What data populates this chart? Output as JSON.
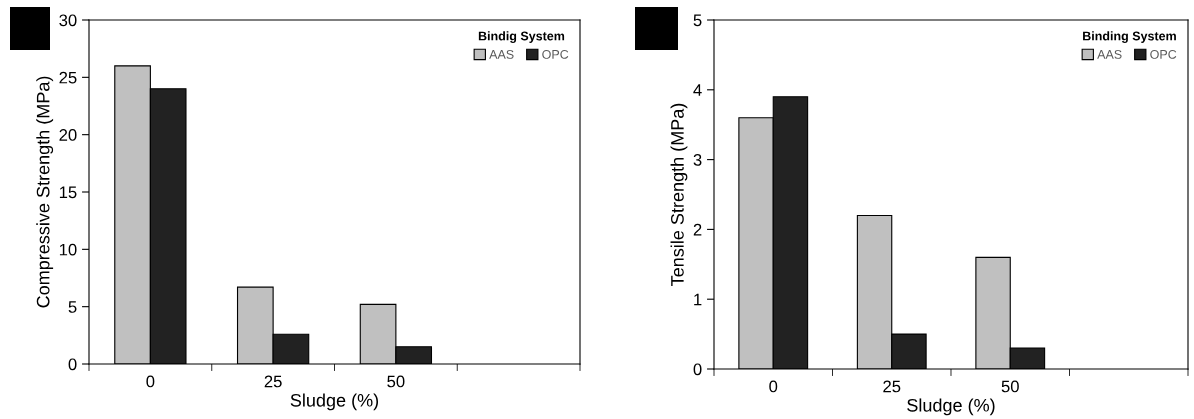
{
  "chart_data": [
    {
      "type": "bar",
      "xlabel": "Sludge (%)",
      "ylabel": "Compressive Strength (MPa)",
      "legend_title": "Bindig System",
      "legend": "top right",
      "categories": [
        "0",
        "25",
        "50",
        null
      ],
      "series": [
        {
          "name": "AAS",
          "color": "#c0c0c0",
          "values": [
            26,
            6.7,
            5.2,
            null
          ]
        },
        {
          "name": "OPC",
          "color": "#222222",
          "values": [
            24,
            2.6,
            1.5,
            null
          ]
        }
      ],
      "ylim": [
        0,
        30
      ],
      "yticks": [
        0,
        5,
        10,
        15,
        20,
        25,
        30
      ],
      "grid": false
    },
    {
      "type": "bar",
      "xlabel": "Sludge (%)",
      "ylabel": "Tensile Strength (MPa)",
      "legend_title": "Binding System",
      "legend": "top right",
      "categories": [
        "0",
        "25",
        "50",
        null
      ],
      "series": [
        {
          "name": "AAS",
          "color": "#c0c0c0",
          "values": [
            3.6,
            2.2,
            1.6,
            null
          ]
        },
        {
          "name": "OPC",
          "color": "#222222",
          "values": [
            3.9,
            0.5,
            0.3,
            null
          ]
        }
      ],
      "ylim": [
        0,
        5
      ],
      "yticks": [
        0,
        1,
        2,
        3,
        4,
        5
      ],
      "grid": false
    }
  ]
}
